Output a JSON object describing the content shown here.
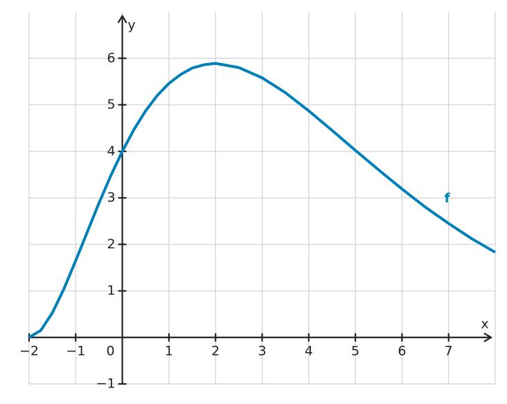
{
  "chart_data": {
    "type": "line",
    "x_label": "x",
    "y_label": "y",
    "x": [
      -2,
      -1.75,
      -1.5,
      -1.25,
      -1,
      -0.75,
      -0.5,
      -0.25,
      0,
      0.25,
      0.5,
      0.75,
      1,
      1.25,
      1.5,
      1.75,
      2,
      2.5,
      3,
      3.5,
      4,
      4.5,
      5,
      5.5,
      6,
      6.5,
      7,
      7.5,
      8
    ],
    "series": [
      {
        "name": "f",
        "color": "#0080b8",
        "values": [
          0,
          0.15,
          0.53,
          1.05,
          1.65,
          2.27,
          2.89,
          3.47,
          4,
          4.47,
          4.87,
          5.2,
          5.46,
          5.65,
          5.79,
          5.86,
          5.89,
          5.8,
          5.58,
          5.26,
          4.87,
          4.45,
          4.02,
          3.6,
          3.19,
          2.8,
          2.45,
          2.12,
          1.83
        ]
      }
    ],
    "xlim": [
      -2,
      8
    ],
    "ylim": [
      -1,
      7
    ],
    "xticks": [
      {
        "value": -2,
        "label": "−2"
      },
      {
        "value": -1,
        "label": "−1"
      },
      0,
      1,
      2,
      3,
      4,
      5,
      6,
      7
    ],
    "yticks": [
      {
        "value": -1,
        "label": "−1"
      },
      1,
      2,
      3,
      4,
      5,
      6
    ],
    "grid": true
  }
}
